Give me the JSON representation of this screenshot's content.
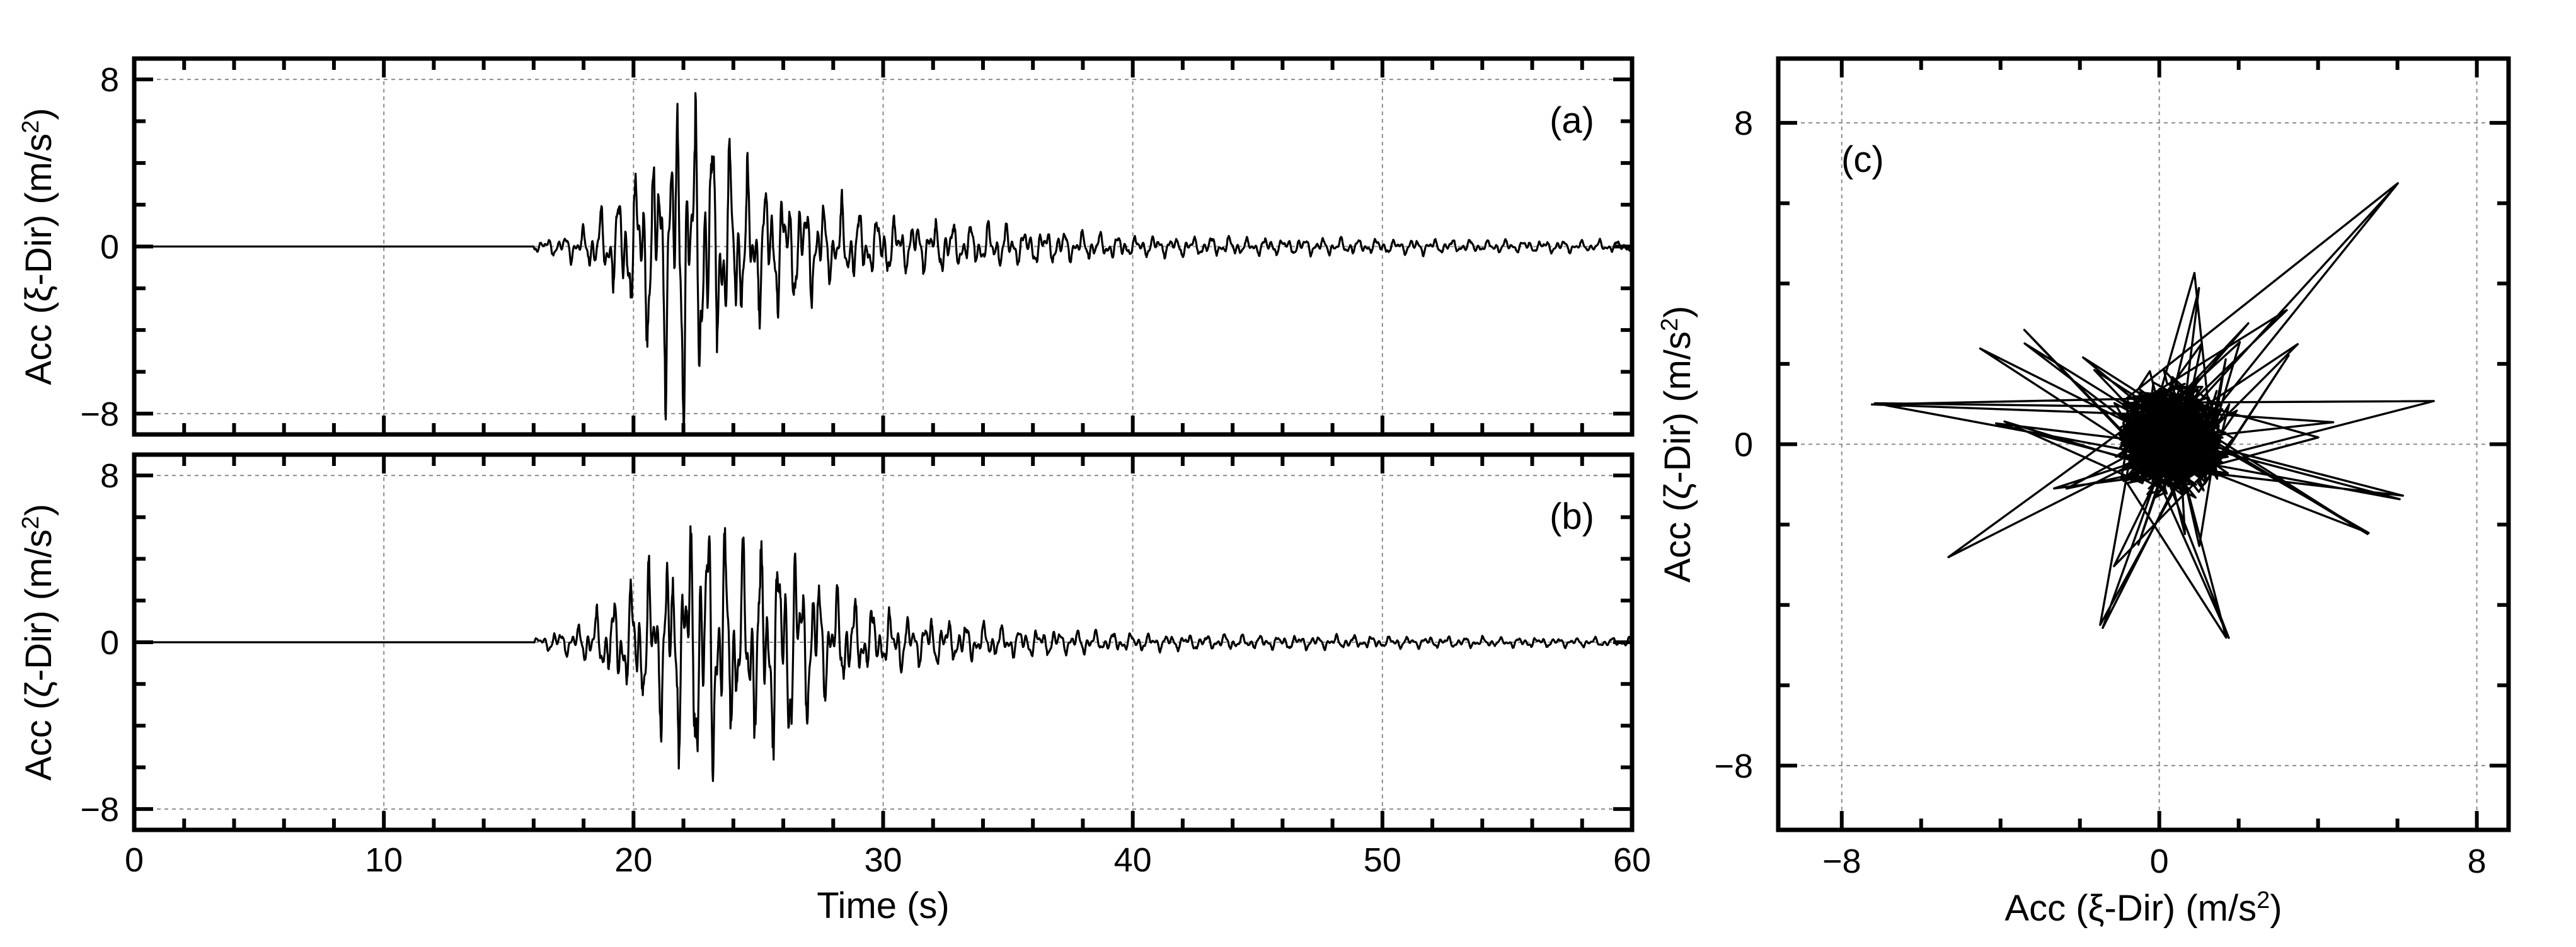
{
  "chart_data": [
    {
      "id": "a",
      "type": "line",
      "panel_label": "(a)",
      "xlabel": "",
      "ylabel_main": "Acc (",
      "ylabel_sym": "ξ",
      "ylabel_rest": "-Dir)  (m/s",
      "ylabel_sup": "2",
      "ylabel_end": ")",
      "xlim": [
        0,
        60
      ],
      "ylim": [
        -9,
        9
      ],
      "yticks": [
        {
          "v": 8,
          "label": "8"
        },
        {
          "v": 0,
          "label": "0"
        },
        {
          "v": -8,
          "label": "−8"
        }
      ],
      "xticks": [
        {
          "v": 0,
          "label": ""
        },
        {
          "v": 10,
          "label": ""
        },
        {
          "v": 20,
          "label": ""
        },
        {
          "v": 30,
          "label": ""
        },
        {
          "v": 40,
          "label": ""
        },
        {
          "v": 50,
          "label": ""
        },
        {
          "v": 60,
          "label": ""
        }
      ],
      "grid": true,
      "series": [
        {
          "x_start": 0,
          "x_end": 60,
          "onset": 16,
          "peak_positive": 7.7,
          "peak_negative": -7.3,
          "envelope_time": [
            16,
            18,
            19.5,
            20.5,
            21.6,
            22.8,
            24,
            26,
            30,
            35,
            40,
            50,
            60
          ],
          "envelope_amp": [
            0.2,
            0.8,
            2.5,
            4.5,
            7.7,
            6.5,
            4.2,
            2.6,
            1.4,
            0.9,
            0.5,
            0.35,
            0.25
          ]
        }
      ]
    },
    {
      "id": "b",
      "type": "line",
      "panel_label": "(b)",
      "xlabel_main": "Time (s)",
      "ylabel_main": "Acc (",
      "ylabel_sym": "ζ",
      "ylabel_rest": "-Dir)  (m/s",
      "ylabel_sup": "2",
      "ylabel_end": ")",
      "xlim": [
        0,
        60
      ],
      "ylim": [
        -9,
        9
      ],
      "yticks": [
        {
          "v": 8,
          "label": "8"
        },
        {
          "v": 0,
          "label": "0"
        },
        {
          "v": -8,
          "label": "−8"
        }
      ],
      "xticks": [
        {
          "v": 0,
          "label": "0"
        },
        {
          "v": 10,
          "label": "10"
        },
        {
          "v": 20,
          "label": "20"
        },
        {
          "v": 30,
          "label": "30"
        },
        {
          "v": 40,
          "label": "40"
        },
        {
          "v": 50,
          "label": "50"
        },
        {
          "v": 60,
          "label": "60"
        }
      ],
      "grid": true,
      "series": [
        {
          "x_start": 0,
          "x_end": 60,
          "onset": 16,
          "peak_positive": 6.4,
          "peak_negative": -5.1,
          "envelope_time": [
            16,
            18,
            19.5,
            21,
            22.7,
            24,
            25.7,
            28,
            30,
            35,
            40,
            50,
            60
          ],
          "envelope_amp": [
            0.2,
            0.9,
            2.4,
            3.8,
            6.2,
            4.8,
            5.2,
            2.4,
            1.3,
            0.7,
            0.4,
            0.28,
            0.2
          ]
        }
      ]
    },
    {
      "id": "c",
      "type": "scatter",
      "panel_label": "(c)",
      "xlabel_main": "Acc (",
      "xlabel_sym": "ξ",
      "xlabel_rest": "-Dir)  (m/s",
      "xlabel_sup": "2",
      "xlabel_end": ")",
      "ylabel_main": "Acc (",
      "ylabel_sym": "ζ",
      "ylabel_rest": "-Dir)  (m/s",
      "ylabel_sup": "2",
      "ylabel_end": ")",
      "xlim": [
        -9.6,
        8.8
      ],
      "ylim": [
        -9.6,
        9.6
      ],
      "xticks": [
        {
          "v": -8,
          "label": "−8"
        },
        {
          "v": 0,
          "label": "0"
        },
        {
          "v": 8,
          "label": "8"
        }
      ],
      "yticks": [
        {
          "v": 8,
          "label": "8"
        },
        {
          "v": 0,
          "label": "0"
        },
        {
          "v": -8,
          "label": "−8"
        }
      ],
      "grid": true,
      "series": [
        {
          "description_points": [
            [
              6,
              6.5
            ],
            [
              -7.2,
              1
            ],
            [
              -5.3,
              -2.8
            ],
            [
              -1.5,
              -4.5
            ],
            [
              1.7,
              -4.9
            ],
            [
              6.9,
              1.1
            ],
            [
              6.1,
              -1.3
            ],
            [
              5.2,
              -2.2
            ]
          ]
        }
      ]
    }
  ]
}
